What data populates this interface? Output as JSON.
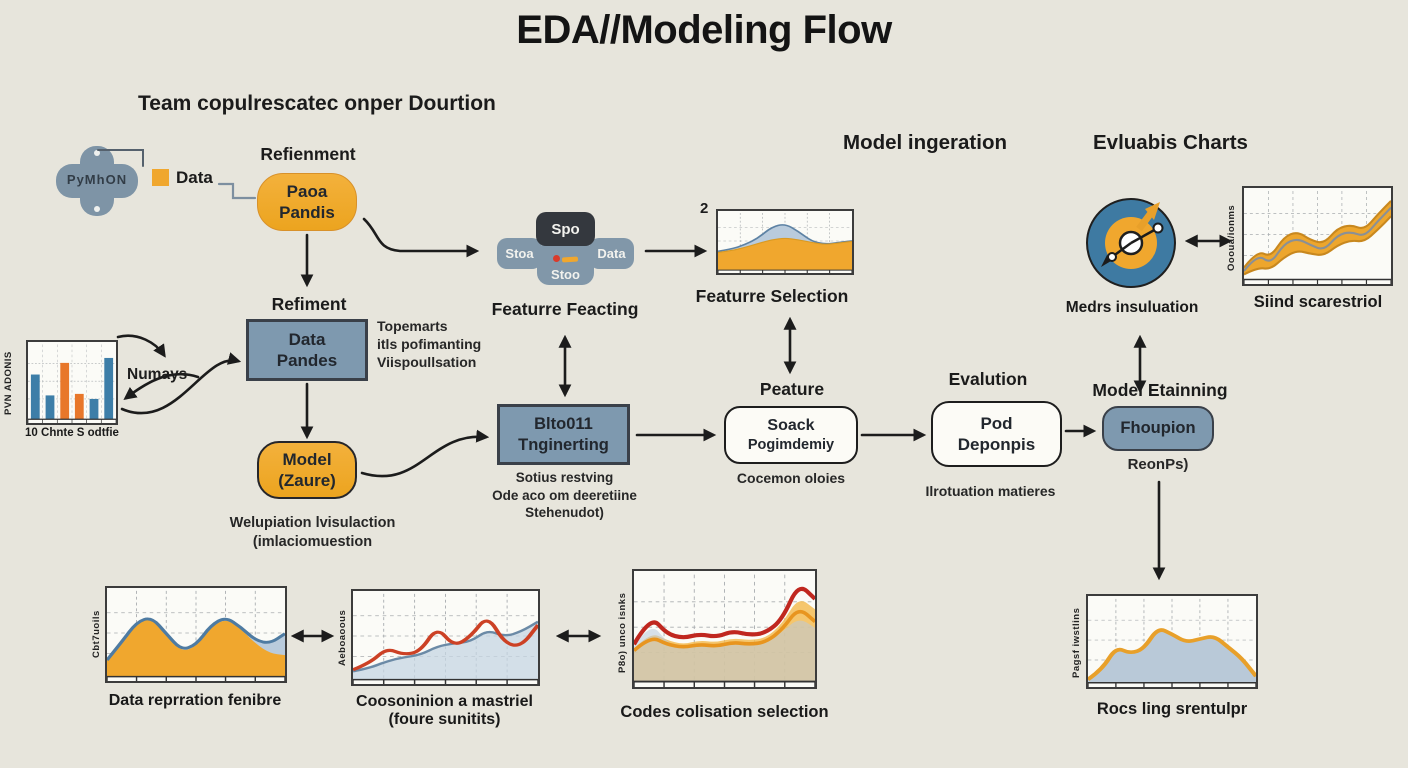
{
  "title": "EDA//Modeling Flow",
  "subtitle": "Team copulrescatec onper Dourtion",
  "colors": {
    "background": "#e7e5dc",
    "accent_orange": "#f0a72e",
    "steel_blue": "#7e99af",
    "bar_blue": "#3d7ea8",
    "bar_orange": "#e8772a",
    "dark_pill": "#34383e",
    "grey_pill": "#8197a9",
    "red_line": "#c0271f",
    "ink": "#1c1c1c"
  },
  "headings": {
    "model_ingeration": "Model ingeration",
    "evluabis": "Evluabis Charts"
  },
  "left_flow": {
    "python_label": "PyMhON",
    "data_legend": "Data",
    "refienment_heading": "Refienment",
    "paoa_line1": "Paoa",
    "paoa_line2": "Pandis",
    "refiment_heading": "Refiment",
    "pandes_line1": "Data",
    "pandes_line2": "Pandes",
    "pandes_note1": "Topemarts",
    "pandes_note2": "itls pofimanting",
    "pandes_note3": "Viispoullsation",
    "model_line1": "Model",
    "model_line2": "(Zaure)",
    "model_note1": "Welupiation lvisulaction",
    "model_note2": "(imlaciomuestion",
    "numays_label": "Numays"
  },
  "feacting": {
    "caption": "Featurre Feacting",
    "top": "Spo",
    "left": "Stoa",
    "right": "Data",
    "bottom": "Stoo"
  },
  "selection": {
    "corner": "2",
    "caption": "Featurre Selection"
  },
  "blto": {
    "line1": "Blto011",
    "line2": "Tnginerting",
    "note1": "Sotius restving",
    "note2": "Ode aco om deeretiine",
    "note3": "Stehenudot)"
  },
  "peature": {
    "heading": "Peature",
    "line1": "Soack",
    "line2": "Pogimdemiy",
    "note": "Cocemon oloies"
  },
  "evalution": {
    "heading": "Evalution",
    "line1": "Pod",
    "line2": "Deponpis",
    "note": "Ilrotuation matieres"
  },
  "etainning": {
    "heading": "Model Etainning",
    "box": "Fhoupion",
    "note": "ReonPs)"
  },
  "medrs_caption": "Medrs insuluation",
  "charts": {
    "bar": {
      "ylabel": "PVN ADONIS",
      "caption": "10 Chnte S odtfie"
    },
    "slind": {
      "ylabel": "Oooua/ionms",
      "caption": "Siind scarestriol"
    },
    "bottom1": {
      "ylabel": "Cbt7uoils",
      "caption": "Data reprration fenibre"
    },
    "bottom2": {
      "ylabel": "Aeboaoous",
      "caption1": "Coosoninion a mastriel",
      "caption2": "(foure sunitits)"
    },
    "bottom3": {
      "ylabel": "P8o) unco isnks",
      "caption": "Codes colisation selection"
    },
    "bottom4": {
      "ylabel": "Pagsf iwstlins",
      "caption": "Rocs ling srentulpr"
    }
  },
  "chart_data": [
    {
      "id": "bar-chart",
      "type": "bar",
      "title": "10 Chnte S odtfie",
      "ylabel": "PVN ADONIS",
      "values": [
        0.62,
        0.33,
        0.78,
        0.35,
        0.28,
        0.85
      ],
      "bar_colors": [
        "#3d7ea8",
        "#3d7ea8",
        "#e8772a",
        "#e8772a",
        "#3d7ea8",
        "#3d7ea8"
      ]
    },
    {
      "id": "selection-chart",
      "type": "area",
      "title": "Featurre Selection",
      "series": [
        {
          "name": "blue band",
          "kind": "area",
          "fill": "#b9cbdc",
          "stroke": "#5d82a4",
          "width": 1.6,
          "values": [
            0.34,
            0.38,
            0.46,
            0.58,
            0.78,
            0.84,
            0.7,
            0.52,
            0.47,
            0.5,
            0.53
          ]
        },
        {
          "name": "orange area",
          "kind": "area",
          "fill": "#f0a72e",
          "stroke": "#da9a22",
          "width": 1.2,
          "values": [
            0.32,
            0.35,
            0.41,
            0.48,
            0.55,
            0.58,
            0.55,
            0.5,
            0.46,
            0.49,
            0.52
          ]
        }
      ]
    },
    {
      "id": "slind-chart",
      "type": "area",
      "title": "Siind scarestriol",
      "ylabel": "Oooua/ionms",
      "series": [
        {
          "name": "band top",
          "kind": "area",
          "fill": "#eda62d",
          "stroke": "#c8881f",
          "width": 1.4,
          "values": [
            0.14,
            0.34,
            0.26,
            0.5,
            0.56,
            0.46,
            0.42,
            0.6,
            0.64,
            0.58,
            0.76,
            0.92
          ]
        },
        {
          "name": "band bottom",
          "kind": "area",
          "fill": "#fbfbf7",
          "stroke": "#c8881f",
          "width": 1.4,
          "values": [
            0.06,
            0.14,
            0.12,
            0.26,
            0.34,
            0.3,
            0.28,
            0.4,
            0.46,
            0.44,
            0.58,
            0.74
          ]
        },
        {
          "name": "grey line",
          "kind": "line",
          "stroke": "#8a9096",
          "width": 1.4,
          "values": [
            0.1,
            0.3,
            0.18,
            0.42,
            0.48,
            0.4,
            0.34,
            0.52,
            0.56,
            0.5,
            0.68,
            0.84
          ]
        }
      ]
    },
    {
      "id": "b1-chart",
      "type": "area",
      "title": "Data reprration fenibre",
      "ylabel": "Cbt7uoils",
      "series": [
        {
          "name": "blue area",
          "kind": "area",
          "fill": "#b9cbdc",
          "stroke": "none",
          "values": [
            0.2,
            0.42,
            0.66,
            0.72,
            0.52,
            0.32,
            0.38,
            0.62,
            0.72,
            0.6,
            0.44,
            0.4,
            0.52
          ]
        },
        {
          "name": "orange area",
          "kind": "area",
          "fill": "#f0a72e",
          "stroke": "none",
          "values": [
            0.2,
            0.42,
            0.65,
            0.71,
            0.5,
            0.3,
            0.36,
            0.6,
            0.7,
            0.58,
            0.4,
            0.28,
            0.26
          ]
        },
        {
          "name": "blue line",
          "kind": "line",
          "stroke": "#4e7ba2",
          "width": 2,
          "values": [
            0.2,
            0.42,
            0.66,
            0.72,
            0.52,
            0.32,
            0.38,
            0.62,
            0.72,
            0.6,
            0.44,
            0.4,
            0.52
          ]
        }
      ]
    },
    {
      "id": "b2-chart",
      "type": "line",
      "title": "Coosoninion a mastriel (foure sunitits)",
      "ylabel": "Aeboaoous",
      "series": [
        {
          "name": "shaded",
          "kind": "area",
          "fill": "#c6d5e3",
          "opacity": 0.75,
          "stroke": "none",
          "values": [
            0.12,
            0.16,
            0.24,
            0.28,
            0.3,
            0.4,
            0.44,
            0.46,
            0.62,
            0.52,
            0.58,
            0.7
          ]
        },
        {
          "name": "blue line",
          "kind": "line",
          "stroke": "#6b8aa6",
          "width": 1.6,
          "values": [
            0.1,
            0.14,
            0.22,
            0.27,
            0.3,
            0.4,
            0.44,
            0.46,
            0.6,
            0.52,
            0.58,
            0.7
          ]
        },
        {
          "name": "red line",
          "kind": "line",
          "stroke": "#cc4125",
          "width": 2.2,
          "values": [
            0.12,
            0.2,
            0.38,
            0.3,
            0.34,
            0.64,
            0.4,
            0.52,
            0.78,
            0.44,
            0.4,
            0.66
          ]
        }
      ]
    },
    {
      "id": "b3-chart",
      "type": "line",
      "title": "Codes colisation selection",
      "ylabel": "P8o) unco isnks",
      "series": [
        {
          "name": "orange wash",
          "kind": "area",
          "fill": "#f3bc55",
          "opacity": 0.85,
          "stroke": "none",
          "values": [
            0.32,
            0.48,
            0.4,
            0.36,
            0.4,
            0.38,
            0.42,
            0.4,
            0.42,
            0.56,
            0.82,
            0.7
          ]
        },
        {
          "name": "blue patches",
          "kind": "area",
          "fill": "#b9cbdc",
          "opacity": 0.55,
          "stroke": "none",
          "values": [
            0.34,
            0.58,
            0.38,
            0.32,
            0.36,
            0.33,
            0.4,
            0.35,
            0.37,
            0.48,
            0.62,
            0.52
          ]
        },
        {
          "name": "orange line",
          "kind": "line",
          "stroke": "#e8951f",
          "width": 2,
          "values": [
            0.3,
            0.44,
            0.36,
            0.33,
            0.36,
            0.34,
            0.38,
            0.36,
            0.38,
            0.5,
            0.72,
            0.58
          ]
        },
        {
          "name": "red line",
          "kind": "line",
          "stroke": "#c0271f",
          "width": 2.3,
          "values": [
            0.36,
            0.64,
            0.46,
            0.42,
            0.46,
            0.43,
            0.49,
            0.45,
            0.47,
            0.6,
            0.95,
            0.8
          ]
        }
      ]
    },
    {
      "id": "b4-chart",
      "type": "area",
      "title": "Rocs ling srentulpr",
      "ylabel": "Pagsf iwstlins",
      "series": [
        {
          "name": "blue area orange outline",
          "kind": "area",
          "fill": "#b9c9d8",
          "stroke": "#e8a02a",
          "width": 2.6,
          "values": [
            0.04,
            0.16,
            0.44,
            0.36,
            0.42,
            0.68,
            0.6,
            0.5,
            0.54,
            0.58,
            0.44,
            0.3,
            0.08
          ]
        }
      ]
    }
  ]
}
